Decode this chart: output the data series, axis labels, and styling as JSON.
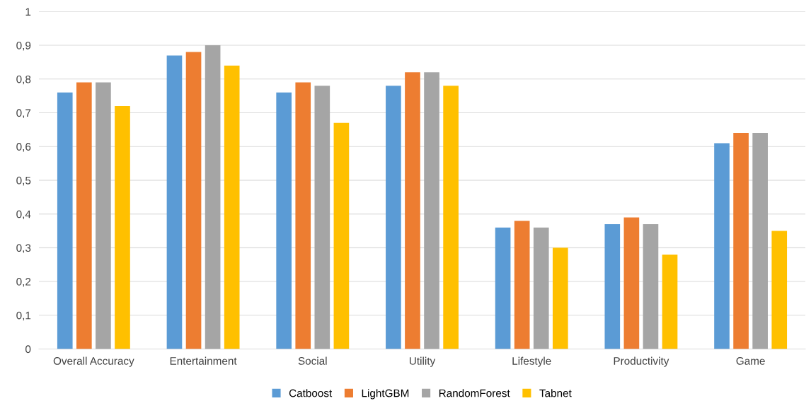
{
  "chart_data": {
    "type": "bar",
    "categories": [
      "Overall Accuracy",
      "Entertainment",
      "Social",
      "Utility",
      "Lifestyle",
      "Productivity",
      "Game"
    ],
    "series": [
      {
        "name": "Catboost",
        "color": "#5b9bd5",
        "values": [
          0.76,
          0.87,
          0.76,
          0.78,
          0.36,
          0.37,
          0.61
        ]
      },
      {
        "name": "LightGBM",
        "color": "#ed7d31",
        "values": [
          0.79,
          0.88,
          0.79,
          0.82,
          0.38,
          0.39,
          0.64
        ]
      },
      {
        "name": "RandomForest",
        "color": "#a5a5a5",
        "values": [
          0.79,
          0.9,
          0.78,
          0.82,
          0.36,
          0.37,
          0.64
        ]
      },
      {
        "name": "Tabnet",
        "color": "#ffc000",
        "values": [
          0.72,
          0.84,
          0.67,
          0.78,
          0.3,
          0.28,
          0.35
        ]
      }
    ],
    "ylim": [
      0,
      1
    ],
    "yticks": [
      0,
      {
        "value": 0.1,
        "label": "0,1"
      },
      {
        "value": 0.2,
        "label": "0,2"
      },
      {
        "value": 0.3,
        "label": "0,3"
      },
      {
        "value": 0.4,
        "label": "0,4"
      },
      {
        "value": 0.5,
        "label": "0,5"
      },
      {
        "value": 0.6,
        "label": "0,6"
      },
      {
        "value": 0.7,
        "label": "0,7"
      },
      {
        "value": 0.8,
        "label": "0,8"
      },
      {
        "value": 0.9,
        "label": "0,9"
      },
      1
    ],
    "grid": "y",
    "legend": "bottom"
  }
}
